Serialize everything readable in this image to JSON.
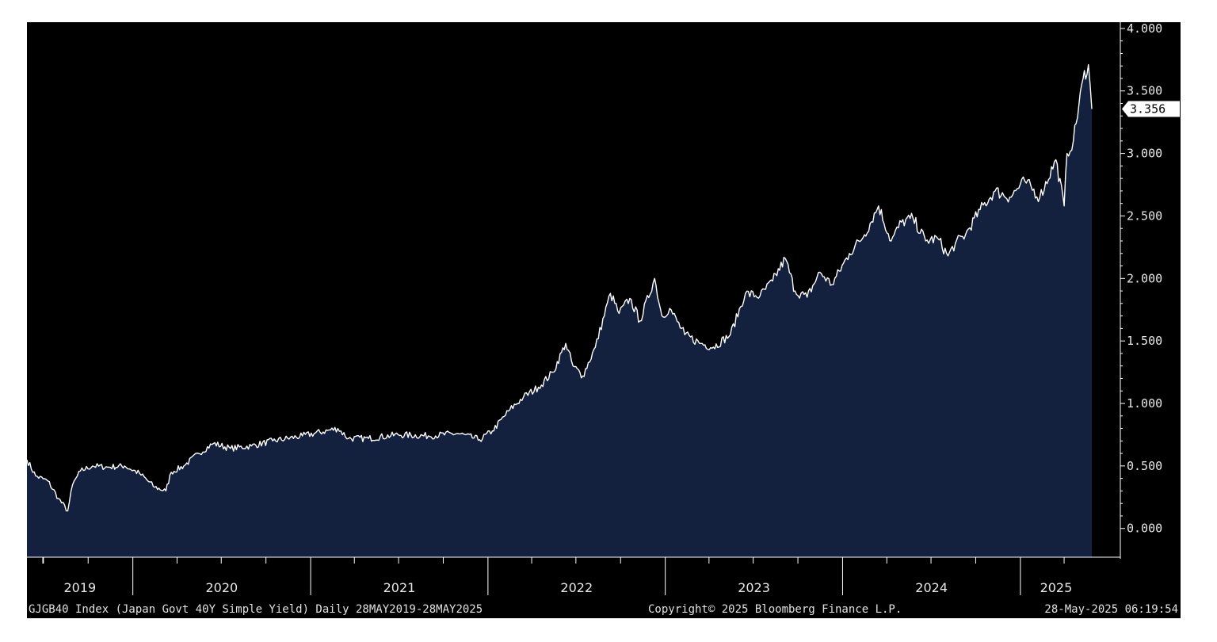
{
  "chart_data": {
    "type": "area",
    "y_ticks": [
      "0.000",
      "0.500",
      "1.000",
      "1.500",
      "2.000",
      "2.500",
      "3.000",
      "3.500",
      "4.000"
    ],
    "ylim": [
      -0.23,
      4.05
    ],
    "x_labels": [
      "2019",
      "2020",
      "2021",
      "2022",
      "2023",
      "2024",
      "2025"
    ],
    "last_value_label": "3.356",
    "footer_left": "GJGB40 Index (Japan Govt 40Y Simple Yield)  Daily 28MAY2019-28MAY2025",
    "footer_center": "Copyright© 2025 Bloomberg Finance L.P.",
    "footer_right": "28-May-2025 06:19:54",
    "colors": {
      "background": "#000000",
      "area_fill": "#13213f",
      "line": "#ffffff"
    },
    "grid": false,
    "series": [
      {
        "x": [
          "2019-05-28",
          "2019-06-15",
          "2019-07-10",
          "2019-08-01",
          "2019-08-20",
          "2019-08-30",
          "2019-09-15",
          "2019-10-10",
          "2019-11-10",
          "2019-12-15",
          "2020-01-15",
          "2020-02-15",
          "2020-03-09",
          "2020-03-20",
          "2020-04-15",
          "2020-05-15",
          "2020-06-15",
          "2020-07-20",
          "2020-09-01",
          "2020-10-15",
          "2020-12-15",
          "2021-02-26",
          "2021-03-20",
          "2021-04-30",
          "2021-06-30",
          "2021-08-31",
          "2021-10-31",
          "2021-12-15",
          "2022-01-10",
          "2022-02-15",
          "2022-03-15",
          "2022-04-15",
          "2022-05-15",
          "2022-06-10",
          "2022-06-25",
          "2022-07-15",
          "2022-08-10",
          "2022-09-10",
          "2022-09-28",
          "2022-10-20",
          "2022-11-10",
          "2022-12-10",
          "2022-12-25",
          "2023-01-10",
          "2023-02-10",
          "2023-03-15",
          "2023-04-10",
          "2023-05-15",
          "2023-06-15",
          "2023-07-15",
          "2023-08-10",
          "2023-09-05",
          "2023-09-25",
          "2023-10-20",
          "2023-11-15",
          "2023-12-10",
          "2024-01-15",
          "2024-02-15",
          "2024-03-15",
          "2024-04-10",
          "2024-05-01",
          "2024-05-25",
          "2024-06-20",
          "2024-07-15",
          "2024-08-05",
          "2024-08-20",
          "2024-09-10",
          "2024-10-10",
          "2024-11-10",
          "2024-12-10",
          "2025-01-10",
          "2025-02-10",
          "2025-03-15",
          "2025-04-01",
          "2025-04-07",
          "2025-04-20",
          "2025-05-10",
          "2025-05-21",
          "2025-05-28"
        ],
        "y": [
          0.55,
          0.42,
          0.38,
          0.24,
          0.14,
          0.35,
          0.46,
          0.5,
          0.49,
          0.5,
          0.44,
          0.33,
          0.3,
          0.45,
          0.5,
          0.6,
          0.68,
          0.64,
          0.66,
          0.7,
          0.74,
          0.8,
          0.72,
          0.72,
          0.75,
          0.74,
          0.76,
          0.71,
          0.78,
          0.95,
          1.05,
          1.13,
          1.25,
          1.48,
          1.3,
          1.22,
          1.45,
          1.88,
          1.72,
          1.84,
          1.66,
          2.0,
          1.7,
          1.76,
          1.55,
          1.48,
          1.45,
          1.55,
          1.88,
          1.86,
          1.98,
          2.16,
          1.9,
          1.85,
          2.05,
          1.95,
          2.2,
          2.35,
          2.58,
          2.3,
          2.45,
          2.48,
          2.3,
          2.32,
          2.18,
          2.28,
          2.35,
          2.55,
          2.7,
          2.65,
          2.78,
          2.65,
          2.95,
          2.58,
          3.0,
          3.1,
          3.6,
          3.71,
          3.356
        ]
      }
    ]
  }
}
